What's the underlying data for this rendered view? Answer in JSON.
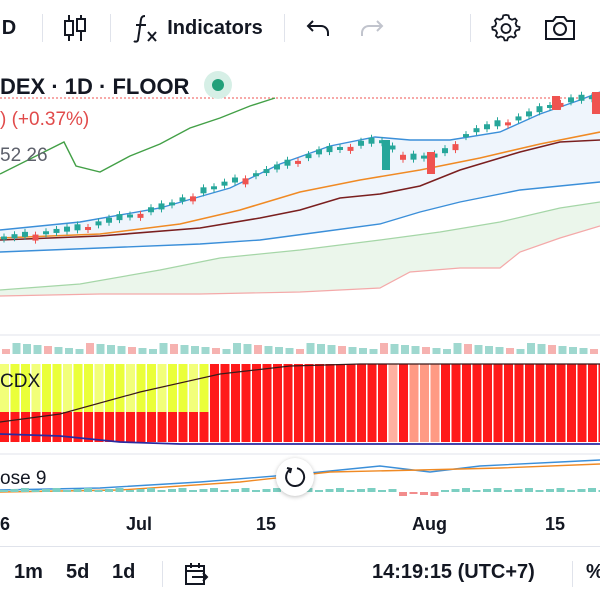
{
  "toolbar": {
    "interval_label": "D",
    "indicators_label": "Indicators",
    "icons": [
      "candles-icon",
      "fx-icon",
      "undo-icon",
      "redo-icon",
      "gear-icon",
      "camera-icon"
    ]
  },
  "legend": {
    "symbol_line": "DEX · 1D · FLOOR",
    "change": ") (+0.37%)",
    "indicator_values": "52 26"
  },
  "panes": {
    "cdx_label": "CDX",
    "macd_label": "ose 9"
  },
  "xaxis": {
    "labels": [
      "6",
      "Jul",
      "15",
      "Aug",
      "15"
    ]
  },
  "bottombar": {
    "ranges": [
      "1m",
      "5d",
      "1d"
    ],
    "time": "14:19:15 (UTC+7)",
    "more": "%"
  },
  "colors": {
    "up": "#26a69a",
    "down": "#ef5350",
    "yellow": "#eaff3a",
    "red": "#ff1a1a",
    "upper_band": "#3b8fd9",
    "mid_line": "#f08a24",
    "low_line": "#7a1f1f",
    "cloud_green": "#4caf50"
  }
}
